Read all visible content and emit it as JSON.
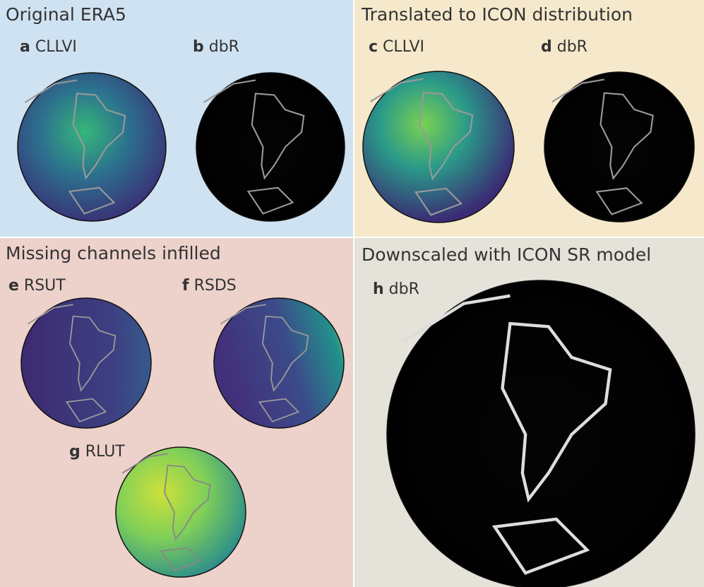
{
  "quadrants": [
    {
      "title": "Original ERA5",
      "panels": [
        {
          "letter": "a",
          "name": "CLLVI"
        },
        {
          "letter": "b",
          "name": "dbR"
        }
      ]
    },
    {
      "title": "Translated to ICON distribution",
      "panels": [
        {
          "letter": "c",
          "name": "CLLVI"
        },
        {
          "letter": "d",
          "name": "dbR"
        }
      ]
    },
    {
      "title": "Missing channels infilled",
      "panels": [
        {
          "letter": "e",
          "name": "RSUT"
        },
        {
          "letter": "f",
          "name": "RSDS"
        },
        {
          "letter": "g",
          "name": "RLUT"
        }
      ]
    },
    {
      "title": "Downscaled with ICON SR model",
      "panels": [
        {
          "letter": "h",
          "name": "dbR"
        }
      ]
    }
  ]
}
